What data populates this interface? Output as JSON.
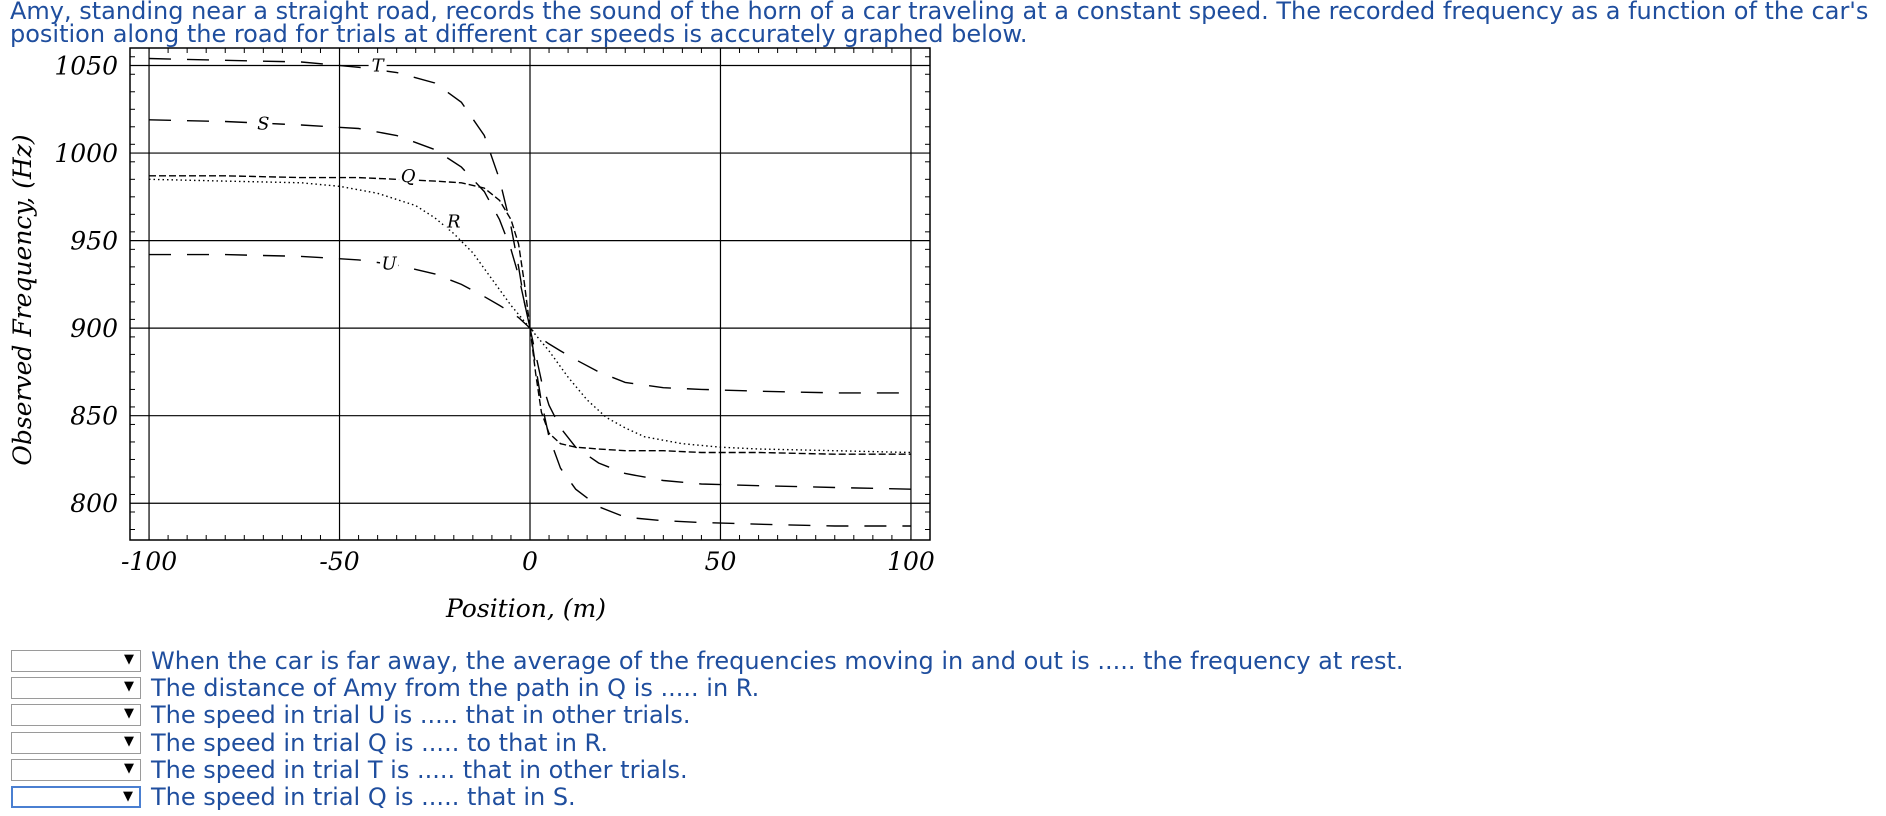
{
  "question": "Amy, standing near a straight road, records the sound of the horn of a car traveling at a constant speed. The recorded frequency as a function of the car's position along the road for trials at different car speeds is accurately graphed below.",
  "chart_data": {
    "type": "line",
    "xlabel": "Position, (m)",
    "ylabel": "Observed Frequency, (Hz)",
    "xlim": [
      -105,
      105
    ],
    "ylim": [
      779,
      1060
    ],
    "xticks": [
      -100,
      -50,
      0,
      50,
      100
    ],
    "xtick_labels": [
      "-100",
      "-50",
      "0",
      "50",
      "100"
    ],
    "yticks": [
      800,
      850,
      900,
      950,
      1000,
      1050
    ],
    "ytick_labels": [
      "800",
      "850",
      "900",
      "950",
      "1000",
      "1050"
    ],
    "grid": true,
    "series": [
      {
        "name": "T",
        "style": "long-dash",
        "label_x": -40,
        "label_y": 1050,
        "x": [
          -100,
          -80,
          -60,
          -45,
          -35,
          -25,
          -18,
          -12,
          -8,
          -5,
          -3,
          -1.5,
          0,
          1.5,
          3,
          5,
          8,
          12,
          18,
          25,
          35,
          45,
          60,
          80,
          100
        ],
        "values": [
          1054,
          1053,
          1052,
          1049,
          1046,
          1040,
          1029,
          1010,
          985,
          958,
          935,
          915,
          900,
          878,
          858,
          838,
          820,
          808,
          798,
          792,
          790,
          789,
          788,
          787,
          787
        ]
      },
      {
        "name": "S",
        "style": "long-dash",
        "label_x": -70,
        "label_y": 1017,
        "x": [
          -100,
          -80,
          -60,
          -45,
          -35,
          -25,
          -18,
          -12,
          -8,
          -5,
          -3,
          -1.5,
          0,
          1.5,
          3,
          5,
          8,
          12,
          18,
          25,
          35,
          45,
          60,
          80,
          100
        ],
        "values": [
          1019,
          1018,
          1016,
          1014,
          1010,
          1002,
          992,
          978,
          962,
          945,
          930,
          915,
          900,
          885,
          870,
          856,
          843,
          832,
          823,
          817,
          813,
          811,
          810,
          809,
          808
        ]
      },
      {
        "name": "Q",
        "style": "short-dash",
        "label_x": -32,
        "label_y": 987,
        "x": [
          -100,
          -80,
          -60,
          -45,
          -35,
          -25,
          -18,
          -12,
          -8,
          -5,
          -3,
          -1.5,
          0,
          1.5,
          3,
          5,
          8,
          12,
          18,
          25,
          35,
          45,
          60,
          80,
          100
        ],
        "values": [
          987,
          987,
          986,
          986,
          985,
          984,
          983,
          980,
          973,
          962,
          948,
          926,
          900,
          874,
          852,
          840,
          834,
          832,
          831,
          830,
          830,
          829,
          829,
          828,
          828
        ]
      },
      {
        "name": "R",
        "style": "dotted",
        "label_x": -20,
        "label_y": 961,
        "x": [
          -100,
          -80,
          -60,
          -50,
          -40,
          -30,
          -25,
          -20,
          -15,
          -10,
          -5,
          0,
          5,
          10,
          15,
          20,
          25,
          30,
          40,
          50,
          60,
          80,
          100
        ],
        "values": [
          985,
          984,
          983,
          981,
          977,
          970,
          963,
          954,
          943,
          928,
          913,
          900,
          887,
          872,
          859,
          849,
          843,
          838,
          834,
          832,
          831,
          830,
          829
        ]
      },
      {
        "name": "U",
        "style": "long-dash",
        "label_x": -37,
        "label_y": 937,
        "x": [
          -100,
          -80,
          -60,
          -45,
          -35,
          -25,
          -18,
          -12,
          -8,
          -5,
          -3,
          -1.5,
          0,
          1.5,
          3,
          5,
          8,
          12,
          18,
          25,
          35,
          45,
          60,
          80,
          100
        ],
        "values": [
          942,
          942,
          941,
          939,
          936,
          931,
          925,
          918,
          913,
          909,
          906,
          903,
          900,
          897,
          894,
          891,
          887,
          882,
          875,
          869,
          866,
          865,
          864,
          863,
          863
        ]
      }
    ]
  },
  "statements": [
    {
      "text": "When the car is far away, the average of the frequencies moving in and out is ..... the frequency at rest.",
      "selected": "",
      "arrow": "▼"
    },
    {
      "text": "The distance of Amy from the path in Q is ..... in R.",
      "selected": "",
      "arrow": "▼"
    },
    {
      "text": "The speed in trial U is ..... that in other trials.",
      "selected": "",
      "arrow": "▼"
    },
    {
      "text": "The speed in trial Q is ..... to that in R.",
      "selected": "",
      "arrow": "▼"
    },
    {
      "text": "The speed in trial T is ..... that in other trials.",
      "selected": "",
      "arrow": "▼"
    },
    {
      "text": "The speed in trial Q is ..... that in S.",
      "selected": "",
      "arrow": "▼"
    }
  ]
}
